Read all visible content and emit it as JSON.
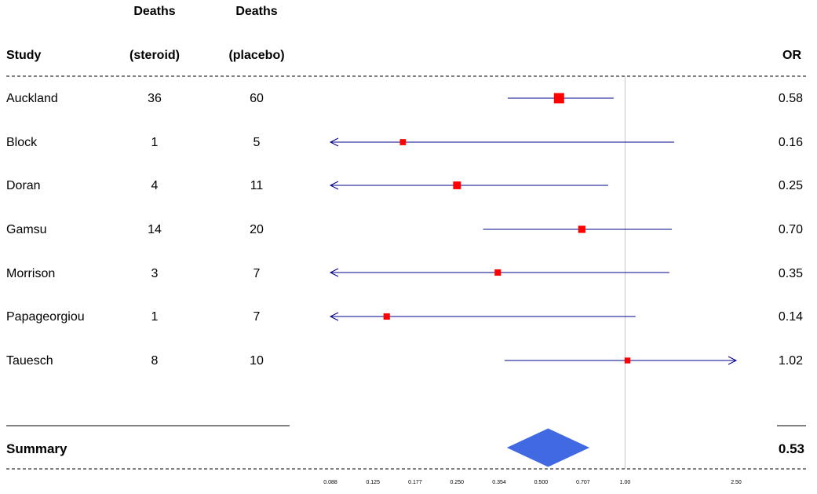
{
  "headers": {
    "study": "Study",
    "deaths_top": "Deaths",
    "steroid": "(steroid)",
    "placebo": "(placebo)",
    "or": "OR"
  },
  "studies": [
    {
      "name": "Auckland",
      "steroid": "36",
      "placebo": "60",
      "or_label": "0.58"
    },
    {
      "name": "Block",
      "steroid": "1",
      "placebo": "5",
      "or_label": "0.16"
    },
    {
      "name": "Doran",
      "steroid": "4",
      "placebo": "11",
      "or_label": "0.25"
    },
    {
      "name": "Gamsu",
      "steroid": "14",
      "placebo": "20",
      "or_label": "0.70"
    },
    {
      "name": "Morrison",
      "steroid": "3",
      "placebo": "7",
      "or_label": "0.35"
    },
    {
      "name": "Papageorgiou",
      "steroid": "1",
      "placebo": "7",
      "or_label": "0.14"
    },
    {
      "name": "Tauesch",
      "steroid": "8",
      "placebo": "10",
      "or_label": "1.02"
    }
  ],
  "summary": {
    "label": "Summary",
    "or_label": "0.53"
  },
  "chart_data": {
    "type": "forest",
    "xscale": "log",
    "xlim": [
      0.088,
      2.5
    ],
    "reference_line": 1.0,
    "tick_values": [
      0.088,
      0.125,
      0.177,
      0.25,
      0.354,
      0.5,
      0.707,
      1.0,
      2.5
    ],
    "tick_labels": [
      "0.088",
      "0.125",
      "0.177",
      "0.250",
      "0.354",
      "0.500",
      "0.707",
      "1.00",
      "2.50"
    ],
    "studies": [
      {
        "name": "Auckland",
        "or": 0.58,
        "lower": 0.38,
        "upper": 0.91,
        "weight": 1.0,
        "arrow_left": false,
        "arrow_right": false
      },
      {
        "name": "Block",
        "or": 0.16,
        "lower": 0.088,
        "upper": 1.5,
        "weight": 0.25,
        "arrow_left": true,
        "arrow_right": false
      },
      {
        "name": "Doran",
        "or": 0.25,
        "lower": 0.088,
        "upper": 0.87,
        "weight": 0.55,
        "arrow_left": true,
        "arrow_right": false
      },
      {
        "name": "Gamsu",
        "or": 0.7,
        "lower": 0.31,
        "upper": 1.47,
        "weight": 0.45,
        "arrow_left": false,
        "arrow_right": false
      },
      {
        "name": "Morrison",
        "or": 0.35,
        "lower": 0.088,
        "upper": 1.44,
        "weight": 0.3,
        "arrow_left": true,
        "arrow_right": false
      },
      {
        "name": "Papageorgiou",
        "or": 0.14,
        "lower": 0.088,
        "upper": 1.09,
        "weight": 0.3,
        "arrow_left": true,
        "arrow_right": false
      },
      {
        "name": "Tauesch",
        "or": 1.02,
        "lower": 0.37,
        "upper": 2.5,
        "weight": 0.2,
        "arrow_left": false,
        "arrow_right": true
      }
    ],
    "summary": {
      "or": 0.53,
      "lower": 0.38,
      "upper": 0.74
    },
    "colors": {
      "box": "#ff0000",
      "ci": "#00008b",
      "summary": "#4169e1",
      "ref": "#c8c8c8"
    }
  }
}
